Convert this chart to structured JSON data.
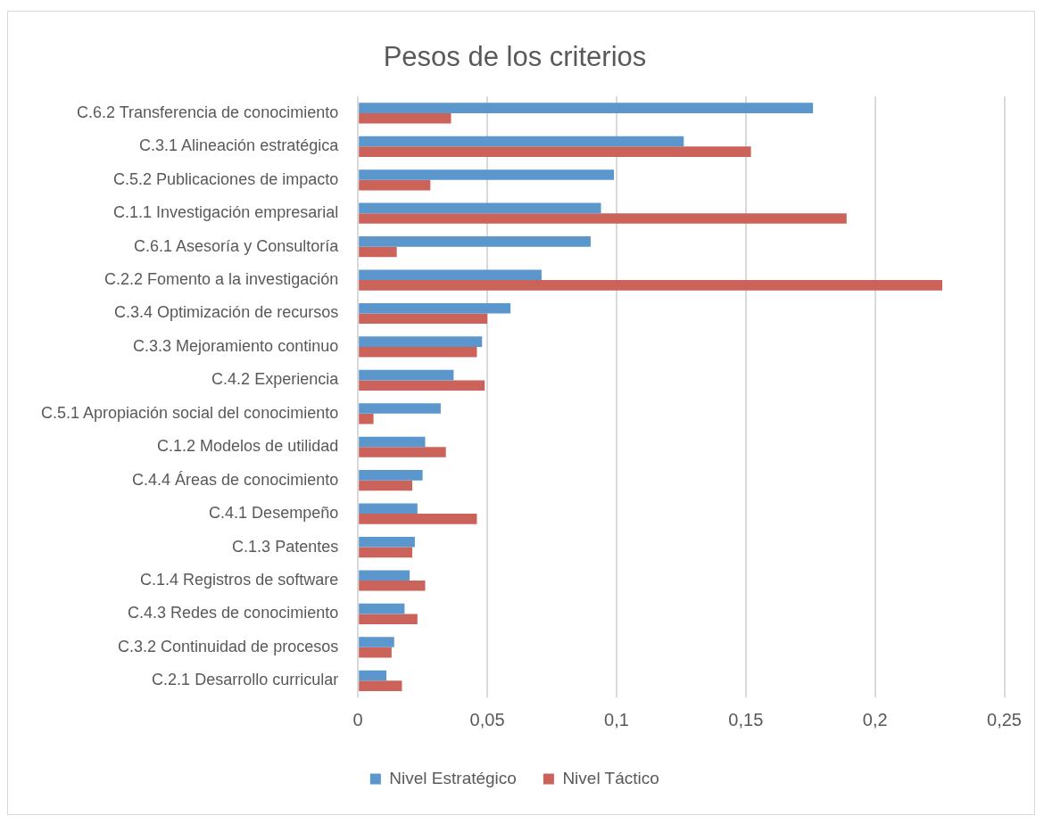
{
  "chart_data": {
    "type": "bar",
    "orientation": "horizontal",
    "title": "Pesos de los criterios",
    "categories": [
      "C.6.2 Transferencia de conocimiento",
      "C.3.1 Alineación estratégica",
      "C.5.2 Publicaciones de impacto",
      "C.1.1 Investigación empresarial",
      "C.6.1 Asesoría y Consultoría",
      "C.2.2 Fomento a la investigación",
      "C.3.4 Optimización de recursos",
      "C.3.3 Mejoramiento continuo",
      "C.4.2 Experiencia",
      "C.5.1 Apropiación social del conocimiento",
      "C.1.2 Modelos de utilidad",
      "C.4.4 Áreas de conocimiento",
      "C.4.1 Desempeño",
      "C.1.3 Patentes",
      "C.1.4 Registros de software",
      "C.4.3 Redes de conocimiento",
      "C.3.2 Continuidad de procesos",
      "C.2.1 Desarrollo curricular"
    ],
    "series": [
      {
        "name": "Nivel Estratégico",
        "color": "#5b96cc",
        "values": [
          0.176,
          0.126,
          0.099,
          0.094,
          0.09,
          0.071,
          0.059,
          0.048,
          0.037,
          0.032,
          0.026,
          0.025,
          0.023,
          0.022,
          0.02,
          0.018,
          0.014,
          0.011
        ]
      },
      {
        "name": "Nivel Táctico",
        "color": "#cc635b",
        "values": [
          0.036,
          0.152,
          0.028,
          0.189,
          0.015,
          0.226,
          0.05,
          0.046,
          0.049,
          0.006,
          0.034,
          0.021,
          0.046,
          0.021,
          0.026,
          0.023,
          0.013,
          0.017
        ]
      }
    ],
    "xlim": [
      0,
      0.25
    ],
    "xticks": [
      {
        "value": 0,
        "label": "0"
      },
      {
        "value": 0.05,
        "label": "0,05"
      },
      {
        "value": 0.1,
        "label": "0,1"
      },
      {
        "value": 0.15,
        "label": "0,15"
      },
      {
        "value": 0.2,
        "label": "0,2"
      },
      {
        "value": 0.25,
        "label": "0,25"
      }
    ],
    "grid": "x",
    "legend": "bottom"
  }
}
